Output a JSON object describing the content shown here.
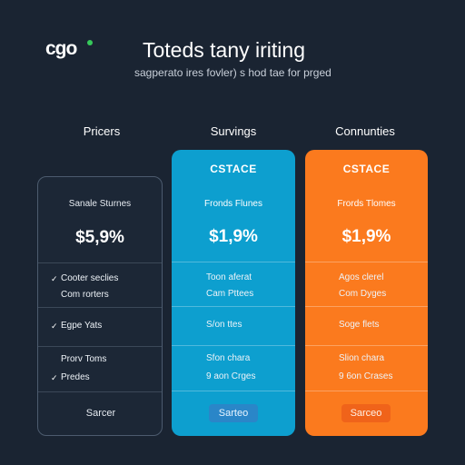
{
  "header": {
    "logo": "cgo",
    "title": "Toteds tany iriting",
    "subtitle": "sagperato ires fovler) s hod tae for prged"
  },
  "columns": [
    {
      "heading": "Pricers",
      "badge": "",
      "subtitle": "Sanale Sturnes",
      "price": "$5,9%",
      "features": [
        "Cooter seclies",
        "Com rorters",
        "Egpe Yats",
        "Prorv Toms",
        "Predes"
      ],
      "button": "Sarcer"
    },
    {
      "heading": "Survings",
      "badge": "CSTACE",
      "subtitle": "Fronds Flunes",
      "price": "$1,9%",
      "features": [
        "Toon aferat",
        "Cam Pttees",
        "S/on ttes",
        "Sfon chara",
        "9 aon Crges"
      ],
      "button": "Sarteo"
    },
    {
      "heading": "Connunties",
      "badge": "CSTACE",
      "subtitle": "Frords Tlomes",
      "price": "$1,9%",
      "features": [
        "Agos clerel",
        "Com Dyges",
        "Soge flets",
        "Slion chara",
        "9 6on Crases"
      ],
      "button": "Sarceo"
    }
  ],
  "colors": {
    "background": "#1a2432",
    "blue_card": "#0d9fcf",
    "orange_card": "#fb7a1e",
    "logo_accent": "#36c95a"
  },
  "icons": {
    "check": "check-icon"
  }
}
